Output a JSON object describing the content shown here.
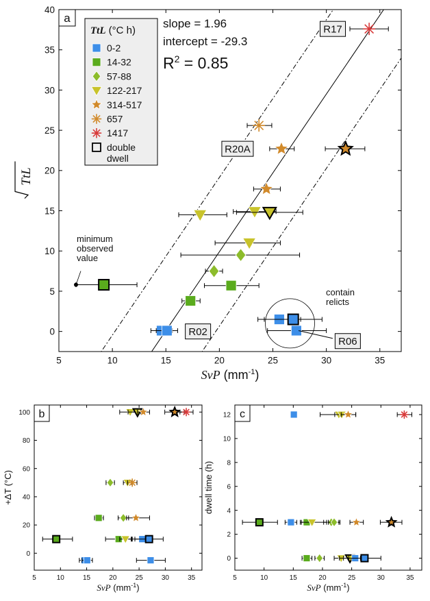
{
  "figure": "three-panel scatter plot of SvP against time-temperature metrics",
  "colors": {
    "blue": "#3d8ee8",
    "green": "#5aab1d",
    "diamond": "#8cbc2b",
    "yellow": "#c8c32b",
    "orange": "#d18a2b",
    "red": "#d83a3a",
    "frame": "#000000",
    "label_bg": "#eeeeee",
    "legend_bg": "#eeeeee"
  },
  "chart_data": [
    {
      "type": "scatter",
      "panel": "a",
      "xlabel": "SvP",
      "xunit": " (mm",
      "ylabel": "TtL",
      "xlim": [
        5,
        37
      ],
      "ylim": [
        -2.5,
        40
      ],
      "xticks": [
        5,
        10,
        15,
        20,
        25,
        30,
        35
      ],
      "yticks": [
        0,
        5,
        10,
        15,
        20,
        25,
        30,
        35,
        40
      ],
      "fit": {
        "slope": 1.96,
        "intercept": -29.3,
        "offset": 4.2,
        "slope_text": "slope = 1.96",
        "intercept_text": "intercept = -29.3",
        "r2_prefix": "R",
        "r2_value": " = 0.85"
      },
      "legend": {
        "title_italic": "TtL",
        "title_unit": " (°C h)",
        "entries": [
          {
            "label": "0-2",
            "marker": "square",
            "color": "blue"
          },
          {
            "label": "14-32",
            "marker": "square",
            "color": "green"
          },
          {
            "label": "57-88",
            "marker": "diamond",
            "color": "diamond"
          },
          {
            "label": "122-217",
            "marker": "triangle",
            "color": "yellow"
          },
          {
            "label": "314-517",
            "marker": "star",
            "color": "orange"
          },
          {
            "label": "657",
            "marker": "asterisk",
            "color": "orange"
          },
          {
            "label": "1417",
            "marker": "asterisk",
            "color": "red"
          },
          {
            "label": "double",
            "label2": "dwell",
            "marker": "square-outline",
            "color": "none"
          }
        ]
      },
      "points": [
        {
          "x": 14.6,
          "y": 0.1,
          "xerr": [
            13.6,
            15.6
          ],
          "marker": "square",
          "color": "blue"
        },
        {
          "x": 15.1,
          "y": 0.1,
          "xerr": [
            14.1,
            16.1
          ],
          "marker": "square",
          "color": "blue"
        },
        {
          "x": 25.6,
          "y": 1.5,
          "xerr": [
            23.6,
            27.6
          ],
          "marker": "square",
          "color": "blue"
        },
        {
          "x": 27.2,
          "y": 0.1,
          "xerr": [
            24.5,
            30.0
          ],
          "marker": "square",
          "color": "blue"
        },
        {
          "x": 26.9,
          "y": 1.5,
          "xerr": [
            24.2,
            29.6
          ],
          "marker": "square",
          "color": "blue",
          "outline": true
        },
        {
          "x": 17.3,
          "y": 3.8,
          "xerr": [
            16.5,
            18.2
          ],
          "marker": "square",
          "color": "green"
        },
        {
          "x": 21.1,
          "y": 5.7,
          "xerr": [
            18.6,
            23.7
          ],
          "marker": "square",
          "color": "green"
        },
        {
          "x": 9.2,
          "y": 5.8,
          "xerr": [
            6.6,
            12.3
          ],
          "marker": "square",
          "color": "green",
          "outline": true
        },
        {
          "x": 19.5,
          "y": 7.5,
          "xerr": [
            18.7,
            20.3
          ],
          "marker": "diamond",
          "color": "diamond"
        },
        {
          "x": 22.0,
          "y": 9.5,
          "xerr": [
            16.4,
            27.5
          ],
          "marker": "diamond",
          "color": "diamond"
        },
        {
          "x": 22.8,
          "y": 11.0,
          "xerr": [
            19.6,
            25.7
          ],
          "marker": "triangle",
          "color": "yellow"
        },
        {
          "x": 18.2,
          "y": 14.5,
          "xerr": [
            16.2,
            20.7
          ],
          "marker": "triangle",
          "color": "yellow"
        },
        {
          "x": 23.3,
          "y": 14.9,
          "xerr": [
            21.3,
            25.3
          ],
          "marker": "triangle",
          "color": "yellow"
        },
        {
          "x": 24.7,
          "y": 14.8,
          "xerr": [
            21.6,
            27.8
          ],
          "marker": "triangle",
          "color": "yellow",
          "outline": true
        },
        {
          "x": 24.4,
          "y": 17.7,
          "xerr": [
            23.2,
            25.7
          ],
          "marker": "star",
          "color": "orange"
        },
        {
          "x": 25.8,
          "y": 22.7,
          "xerr": [
            24.7,
            27.0
          ],
          "marker": "star",
          "color": "orange"
        },
        {
          "x": 31.8,
          "y": 22.7,
          "xerr": [
            29.9,
            33.6
          ],
          "marker": "star",
          "color": "orange",
          "outline": true
        },
        {
          "x": 23.7,
          "y": 25.6,
          "xerr": [
            22.6,
            24.9
          ],
          "marker": "asterisk",
          "color": "orange"
        },
        {
          "x": 34.0,
          "y": 37.6,
          "xerr": [
            32.2,
            35.8
          ],
          "marker": "asterisk",
          "color": "red"
        }
      ],
      "labels": [
        {
          "text": "R17",
          "x": 30.6,
          "y": 37.6
        },
        {
          "text": "R20A",
          "x": 21.7,
          "y": 22.7
        },
        {
          "text": "R02",
          "x": 18.0,
          "y": 0.0
        },
        {
          "text": "R06",
          "x": 32.0,
          "y": -1.2
        }
      ],
      "annotations": {
        "min_text": [
          "minimum",
          "observed",
          "value"
        ],
        "min_point": {
          "x": 6.6,
          "y": 5.8
        },
        "relict_text": [
          "contain",
          "relicts"
        ],
        "relict_circle": {
          "x": 26.6,
          "y": 1.0
        }
      }
    },
    {
      "type": "scatter",
      "panel": "b",
      "xlabel": "SvP",
      "xunit": " (mm",
      "ylabel": "+ΔT (°C)",
      "xlim": [
        5,
        37
      ],
      "ylim": [
        -12,
        105
      ],
      "xticks": [
        5,
        10,
        15,
        20,
        25,
        30,
        35
      ],
      "yticks": [
        0,
        20,
        40,
        60,
        80,
        100
      ],
      "points": [
        {
          "x": 14.6,
          "y": -5,
          "xerr": [
            13.6,
            15.6
          ],
          "marker": "square",
          "color": "blue"
        },
        {
          "x": 15.1,
          "y": -5,
          "xerr": [
            14.1,
            16.1
          ],
          "marker": "square",
          "color": "blue"
        },
        {
          "x": 27.2,
          "y": -5,
          "xerr": [
            24.5,
            30.0
          ],
          "marker": "square",
          "color": "blue"
        },
        {
          "x": 25.6,
          "y": 10,
          "xerr": [
            23.6,
            27.6
          ],
          "marker": "square",
          "color": "blue"
        },
        {
          "x": 26.9,
          "y": 10,
          "xerr": [
            24.2,
            29.6
          ],
          "marker": "square",
          "color": "blue",
          "outline": true
        },
        {
          "x": 9.2,
          "y": 10,
          "xerr": [
            6.6,
            12.3
          ],
          "marker": "square",
          "color": "green",
          "outline": true
        },
        {
          "x": 21.1,
          "y": 10,
          "xerr": [
            18.6,
            23.7
          ],
          "marker": "square",
          "color": "green"
        },
        {
          "x": 22.4,
          "y": 10,
          "xerr": [
            21.3,
            23.5
          ],
          "marker": "triangle",
          "color": "yellow"
        },
        {
          "x": 17.3,
          "y": 25,
          "xerr": [
            16.5,
            18.2
          ],
          "marker": "square",
          "color": "green"
        },
        {
          "x": 22.0,
          "y": 25,
          "xerr": [
            21.0,
            23.0
          ],
          "marker": "diamond",
          "color": "diamond"
        },
        {
          "x": 24.4,
          "y": 25,
          "xerr": [
            22.6,
            27.0
          ],
          "marker": "star",
          "color": "orange"
        },
        {
          "x": 22.8,
          "y": 50,
          "xerr": [
            22.0,
            23.6
          ],
          "marker": "triangle",
          "color": "yellow"
        },
        {
          "x": 19.5,
          "y": 50,
          "xerr": [
            18.7,
            20.3
          ],
          "marker": "diamond",
          "color": "diamond"
        },
        {
          "x": 23.7,
          "y": 50,
          "xerr": [
            22.8,
            24.6
          ],
          "marker": "asterisk",
          "color": "orange"
        },
        {
          "x": 23.3,
          "y": 100,
          "xerr": [
            21.3,
            25.3
          ],
          "marker": "triangle",
          "color": "yellow"
        },
        {
          "x": 24.7,
          "y": 100,
          "xerr": [
            22.9,
            26.0
          ],
          "marker": "triangle",
          "color": "yellow",
          "outline": true
        },
        {
          "x": 25.8,
          "y": 100,
          "xerr": [
            24.7,
            27.0
          ],
          "marker": "star",
          "color": "orange"
        },
        {
          "x": 31.8,
          "y": 100,
          "xerr": [
            29.9,
            33.6
          ],
          "marker": "star",
          "color": "orange",
          "outline": true
        },
        {
          "x": 34.0,
          "y": 100,
          "xerr": [
            32.8,
            35.3
          ],
          "marker": "asterisk",
          "color": "red"
        }
      ]
    },
    {
      "type": "scatter",
      "panel": "c",
      "xlabel": "SvP",
      "xunit": " (mm",
      "ylabel": "dwell time (h)",
      "xlim": [
        5,
        37
      ],
      "ylim": [
        -1,
        12.8
      ],
      "xticks": [
        5,
        10,
        15,
        20,
        25,
        30,
        35
      ],
      "yticks": [
        0,
        2,
        4,
        6,
        8,
        10,
        12
      ],
      "points": [
        {
          "x": 15.1,
          "y": 12,
          "marker": "square",
          "color": "blue"
        },
        {
          "x": 22.8,
          "y": 12,
          "xerr": [
            19.6,
            25.7
          ],
          "marker": "triangle",
          "color": "yellow"
        },
        {
          "x": 23.3,
          "y": 12,
          "xerr": [
            22.1,
            24.5
          ],
          "marker": "triangle",
          "color": "yellow"
        },
        {
          "x": 24.4,
          "y": 12,
          "xerr": [
            23.2,
            25.7
          ],
          "marker": "star",
          "color": "orange"
        },
        {
          "x": 34.0,
          "y": 12,
          "xerr": [
            32.8,
            35.3
          ],
          "marker": "asterisk",
          "color": "red"
        },
        {
          "x": 9.2,
          "y": 3,
          "xerr": [
            6.3,
            12.3
          ],
          "marker": "square",
          "color": "green",
          "outline": true
        },
        {
          "x": 14.6,
          "y": 3,
          "xerr": [
            13.6,
            15.6
          ],
          "marker": "square",
          "color": "blue"
        },
        {
          "x": 17.3,
          "y": 3,
          "xerr": [
            16.2,
            18.4
          ],
          "marker": "square",
          "color": "green"
        },
        {
          "x": 18.2,
          "y": 3,
          "xerr": [
            16.4,
            20.7
          ],
          "marker": "triangle",
          "color": "yellow"
        },
        {
          "x": 21.5,
          "y": 3,
          "xerr": [
            20.2,
            22.8
          ],
          "marker": "diamond",
          "color": "diamond"
        },
        {
          "x": 22.0,
          "y": 3,
          "xerr": [
            21.0,
            23.0
          ],
          "marker": "diamond",
          "color": "diamond"
        },
        {
          "x": 25.8,
          "y": 3,
          "xerr": [
            24.7,
            27.0
          ],
          "marker": "star",
          "color": "orange"
        },
        {
          "x": 31.8,
          "y": 3,
          "xerr": [
            29.9,
            33.6
          ],
          "marker": "star",
          "color": "orange",
          "outline": true
        },
        {
          "x": 17.3,
          "y": 0,
          "xerr": [
            16.5,
            18.2
          ],
          "marker": "square",
          "color": "green"
        },
        {
          "x": 19.5,
          "y": 0,
          "xerr": [
            18.7,
            20.3
          ],
          "marker": "diamond",
          "color": "diamond"
        },
        {
          "x": 23.2,
          "y": 0,
          "xerr": [
            22.0,
            24.4
          ],
          "marker": "triangle",
          "color": "yellow"
        },
        {
          "x": 24.7,
          "y": 0,
          "xerr": [
            22.9,
            26.5
          ],
          "marker": "triangle",
          "color": "yellow",
          "outline": true
        },
        {
          "x": 25.6,
          "y": 0,
          "xerr": [
            23.6,
            27.6
          ],
          "marker": "square",
          "color": "blue"
        },
        {
          "x": 27.2,
          "y": 0,
          "xerr": [
            24.5,
            30.0
          ],
          "marker": "square",
          "color": "blue",
          "outline": true
        }
      ]
    }
  ]
}
